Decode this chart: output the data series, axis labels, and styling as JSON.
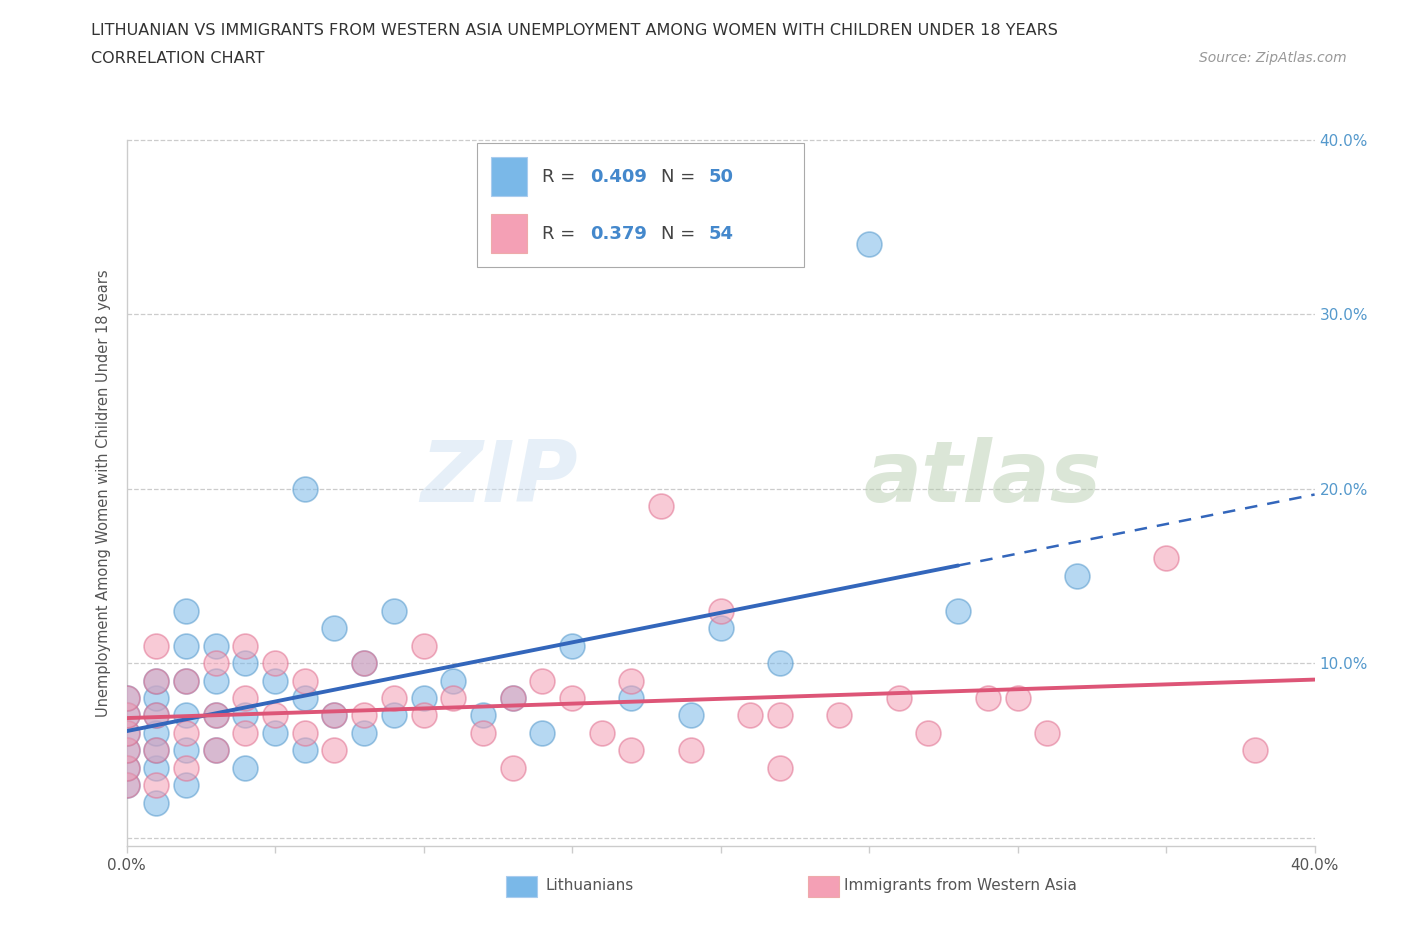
{
  "title_line1": "LITHUANIAN VS IMMIGRANTS FROM WESTERN ASIA UNEMPLOYMENT AMONG WOMEN WITH CHILDREN UNDER 18 YEARS",
  "title_line2": "CORRELATION CHART",
  "source_text": "Source: ZipAtlas.com",
  "ylabel": "Unemployment Among Women with Children Under 18 years",
  "xmin": 0.0,
  "xmax": 0.4,
  "ymin": -0.005,
  "ymax": 0.4,
  "series1_name": "Lithuanians",
  "series1_color": "#7ab8e8",
  "series1_edge_color": "#5599cc",
  "series1_R": 0.409,
  "series1_N": 50,
  "series2_name": "Immigrants from Western Asia",
  "series2_color": "#f4a0b5",
  "series2_edge_color": "#e07090",
  "series2_R": 0.379,
  "series2_N": 54,
  "watermark_zip": "ZIP",
  "watermark_atlas": "atlas",
  "background_color": "#ffffff",
  "grid_color": "#cccccc",
  "title_color": "#333333",
  "axis_color": "#555555",
  "legend_R_color": "#4488cc",
  "trendline1_color": "#3366bb",
  "trendline2_color": "#dd5577",
  "right_tick_color": "#5599cc",
  "series1_x": [
    0.0,
    0.0,
    0.0,
    0.0,
    0.0,
    0.0,
    0.01,
    0.01,
    0.01,
    0.01,
    0.01,
    0.01,
    0.01,
    0.02,
    0.02,
    0.02,
    0.02,
    0.02,
    0.02,
    0.03,
    0.03,
    0.03,
    0.03,
    0.04,
    0.04,
    0.04,
    0.05,
    0.05,
    0.06,
    0.06,
    0.06,
    0.07,
    0.07,
    0.08,
    0.08,
    0.09,
    0.09,
    0.1,
    0.11,
    0.12,
    0.13,
    0.14,
    0.15,
    0.17,
    0.19,
    0.2,
    0.22,
    0.25,
    0.28,
    0.32
  ],
  "series1_y": [
    0.03,
    0.04,
    0.05,
    0.06,
    0.07,
    0.08,
    0.02,
    0.04,
    0.05,
    0.06,
    0.07,
    0.08,
    0.09,
    0.03,
    0.05,
    0.07,
    0.09,
    0.11,
    0.13,
    0.05,
    0.07,
    0.09,
    0.11,
    0.04,
    0.07,
    0.1,
    0.06,
    0.09,
    0.05,
    0.08,
    0.2,
    0.07,
    0.12,
    0.06,
    0.1,
    0.07,
    0.13,
    0.08,
    0.09,
    0.07,
    0.08,
    0.06,
    0.11,
    0.08,
    0.07,
    0.12,
    0.1,
    0.34,
    0.13,
    0.15
  ],
  "series2_x": [
    0.0,
    0.0,
    0.0,
    0.0,
    0.0,
    0.0,
    0.01,
    0.01,
    0.01,
    0.01,
    0.01,
    0.02,
    0.02,
    0.02,
    0.03,
    0.03,
    0.03,
    0.04,
    0.04,
    0.04,
    0.05,
    0.05,
    0.06,
    0.06,
    0.07,
    0.07,
    0.08,
    0.08,
    0.09,
    0.1,
    0.1,
    0.11,
    0.12,
    0.13,
    0.14,
    0.15,
    0.16,
    0.17,
    0.18,
    0.19,
    0.2,
    0.21,
    0.22,
    0.24,
    0.26,
    0.27,
    0.29,
    0.31,
    0.35,
    0.38,
    0.13,
    0.17,
    0.22,
    0.3
  ],
  "series2_y": [
    0.03,
    0.04,
    0.05,
    0.06,
    0.07,
    0.08,
    0.03,
    0.05,
    0.07,
    0.09,
    0.11,
    0.04,
    0.06,
    0.09,
    0.05,
    0.07,
    0.1,
    0.06,
    0.08,
    0.11,
    0.07,
    0.1,
    0.06,
    0.09,
    0.07,
    0.05,
    0.07,
    0.1,
    0.08,
    0.07,
    0.11,
    0.08,
    0.06,
    0.08,
    0.09,
    0.08,
    0.06,
    0.09,
    0.19,
    0.05,
    0.13,
    0.07,
    0.07,
    0.07,
    0.08,
    0.06,
    0.08,
    0.06,
    0.16,
    0.05,
    0.04,
    0.05,
    0.04,
    0.08
  ],
  "trendline1_x_start": 0.0,
  "trendline1_x_solid_end": 0.28,
  "trendline1_x_dash_end": 0.4,
  "trendline2_x_start": 0.0,
  "trendline2_x_end": 0.4
}
